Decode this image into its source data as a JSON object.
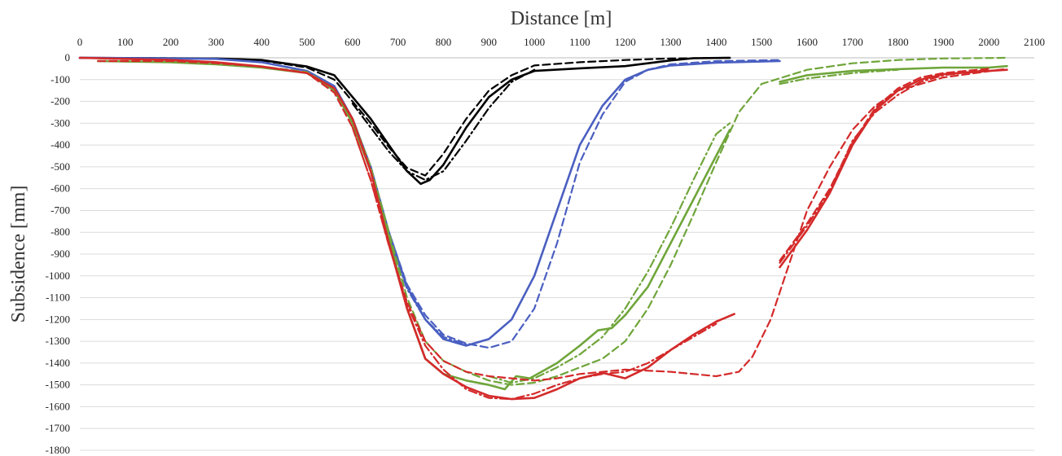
{
  "chart_data": {
    "type": "line",
    "title": "",
    "xlabel": "Distance [m]",
    "ylabel": "Subsidence [mm]",
    "x_axis_position": "top",
    "xlim": [
      0,
      2100
    ],
    "ylim": [
      -1800,
      0
    ],
    "x_ticks": [
      0,
      100,
      200,
      300,
      400,
      500,
      600,
      700,
      800,
      900,
      1000,
      1100,
      1200,
      1300,
      1400,
      1500,
      1600,
      1700,
      1800,
      1900,
      2000,
      2100
    ],
    "y_ticks": [
      0,
      -100,
      -200,
      -300,
      -400,
      -500,
      -600,
      -700,
      -800,
      -900,
      -1000,
      -1100,
      -1200,
      -1300,
      -1400,
      -1500,
      -1600,
      -1700,
      -1800
    ],
    "grid": "horizontal",
    "legend": "none",
    "series": [
      {
        "color": "#000000",
        "style": "solid",
        "points": [
          [
            0,
            0
          ],
          [
            300,
            -3
          ],
          [
            400,
            -10
          ],
          [
            500,
            -40
          ],
          [
            560,
            -80
          ],
          [
            600,
            -180
          ],
          [
            640,
            -280
          ],
          [
            680,
            -400
          ],
          [
            720,
            -520
          ],
          [
            750,
            -578
          ],
          [
            770,
            -560
          ],
          [
            800,
            -490
          ],
          [
            850,
            -320
          ],
          [
            900,
            -180
          ],
          [
            950,
            -100
          ],
          [
            1000,
            -60
          ],
          [
            1100,
            -48
          ],
          [
            1200,
            -38
          ],
          [
            1300,
            -12
          ],
          [
            1350,
            -2
          ],
          [
            1430,
            0
          ]
        ]
      },
      {
        "color": "#000000",
        "style": "dashed",
        "points": [
          [
            0,
            0
          ],
          [
            300,
            -3
          ],
          [
            400,
            -12
          ],
          [
            500,
            -45
          ],
          [
            560,
            -100
          ],
          [
            600,
            -200
          ],
          [
            640,
            -300
          ],
          [
            680,
            -410
          ],
          [
            720,
            -505
          ],
          [
            760,
            -540
          ],
          [
            800,
            -440
          ],
          [
            850,
            -280
          ],
          [
            900,
            -150
          ],
          [
            950,
            -80
          ],
          [
            1000,
            -35
          ],
          [
            1100,
            -20
          ],
          [
            1200,
            -10
          ],
          [
            1300,
            -3
          ],
          [
            1430,
            0
          ]
        ]
      },
      {
        "color": "#000000",
        "style": "dashdot",
        "points": [
          [
            600,
            -210
          ],
          [
            640,
            -320
          ],
          [
            680,
            -430
          ],
          [
            720,
            -520
          ],
          [
            760,
            -560
          ],
          [
            800,
            -520
          ],
          [
            850,
            -380
          ],
          [
            900,
            -230
          ],
          [
            950,
            -110
          ],
          [
            1000,
            -55
          ]
        ]
      },
      {
        "color": "#4a5fc1",
        "style": "solid",
        "points": [
          [
            0,
            0
          ],
          [
            300,
            -5
          ],
          [
            400,
            -20
          ],
          [
            500,
            -60
          ],
          [
            560,
            -130
          ],
          [
            600,
            -280
          ],
          [
            640,
            -500
          ],
          [
            680,
            -800
          ],
          [
            720,
            -1050
          ],
          [
            760,
            -1200
          ],
          [
            800,
            -1290
          ],
          [
            850,
            -1320
          ],
          [
            900,
            -1290
          ],
          [
            950,
            -1200
          ],
          [
            1000,
            -1000
          ],
          [
            1050,
            -700
          ],
          [
            1100,
            -400
          ],
          [
            1150,
            -220
          ],
          [
            1200,
            -100
          ],
          [
            1250,
            -55
          ],
          [
            1300,
            -35
          ],
          [
            1400,
            -22
          ],
          [
            1540,
            -15
          ]
        ]
      },
      {
        "color": "#4a5fc1",
        "style": "dashed",
        "points": [
          [
            600,
            -290
          ],
          [
            640,
            -510
          ],
          [
            680,
            -800
          ],
          [
            720,
            -1040
          ],
          [
            760,
            -1180
          ],
          [
            800,
            -1270
          ],
          [
            850,
            -1310
          ],
          [
            900,
            -1330
          ],
          [
            950,
            -1300
          ],
          [
            1000,
            -1150
          ],
          [
            1050,
            -850
          ],
          [
            1100,
            -480
          ],
          [
            1150,
            -260
          ],
          [
            1200,
            -110
          ],
          [
            1250,
            -55
          ],
          [
            1300,
            -30
          ],
          [
            1400,
            -15
          ],
          [
            1540,
            -10
          ]
        ]
      },
      {
        "color": "#4a5fc1",
        "style": "dashdot",
        "points": [
          [
            640,
            -520
          ],
          [
            680,
            -820
          ],
          [
            720,
            -1060
          ],
          [
            760,
            -1200
          ],
          [
            800,
            -1280
          ],
          [
            850,
            -1315
          ]
        ]
      },
      {
        "color": "#6fa53a",
        "style": "solid",
        "points": [
          [
            40,
            -15
          ],
          [
            200,
            -20
          ],
          [
            300,
            -30
          ],
          [
            400,
            -45
          ],
          [
            500,
            -70
          ],
          [
            560,
            -150
          ],
          [
            600,
            -300
          ],
          [
            640,
            -520
          ],
          [
            680,
            -820
          ],
          [
            720,
            -1150
          ],
          [
            760,
            -1380
          ],
          [
            800,
            -1450
          ],
          [
            850,
            -1480
          ],
          [
            900,
            -1500
          ],
          [
            935,
            -1520
          ],
          [
            960,
            -1460
          ],
          [
            990,
            -1470
          ],
          [
            1050,
            -1400
          ],
          [
            1100,
            -1320
          ],
          [
            1140,
            -1250
          ],
          [
            1170,
            -1240
          ],
          [
            1200,
            -1180
          ],
          [
            1250,
            -1050
          ],
          [
            1300,
            -850
          ],
          [
            1350,
            -650
          ],
          [
            1400,
            -450
          ],
          [
            1430,
            -330
          ]
        ]
      },
      {
        "color": "#6fa53a",
        "style": "solid",
        "points": [
          [
            1540,
            -110
          ],
          [
            1600,
            -80
          ],
          [
            1700,
            -60
          ],
          [
            1800,
            -52
          ],
          [
            1900,
            -45
          ],
          [
            2000,
            -45
          ],
          [
            2040,
            -38
          ]
        ]
      },
      {
        "color": "#6fa53a",
        "style": "dashed",
        "points": [
          [
            40,
            -15
          ],
          [
            200,
            -15
          ],
          [
            300,
            -25
          ],
          [
            400,
            -40
          ],
          [
            500,
            -65
          ],
          [
            560,
            -140
          ],
          [
            600,
            -280
          ],
          [
            640,
            -500
          ],
          [
            680,
            -800
          ],
          [
            720,
            -1100
          ],
          [
            760,
            -1300
          ],
          [
            800,
            -1390
          ],
          [
            850,
            -1440
          ],
          [
            900,
            -1480
          ],
          [
            950,
            -1500
          ],
          [
            1000,
            -1490
          ],
          [
            1050,
            -1460
          ],
          [
            1100,
            -1420
          ],
          [
            1150,
            -1380
          ],
          [
            1200,
            -1300
          ],
          [
            1250,
            -1150
          ],
          [
            1300,
            -950
          ],
          [
            1350,
            -720
          ],
          [
            1400,
            -480
          ],
          [
            1450,
            -250
          ],
          [
            1500,
            -120
          ],
          [
            1600,
            -55
          ],
          [
            1700,
            -25
          ],
          [
            1800,
            -10
          ],
          [
            1900,
            -3
          ],
          [
            2040,
            0
          ]
        ]
      },
      {
        "color": "#6fa53a",
        "style": "dashdot",
        "points": [
          [
            900,
            -1460
          ],
          [
            950,
            -1490
          ],
          [
            1000,
            -1470
          ],
          [
            1050,
            -1420
          ],
          [
            1100,
            -1360
          ],
          [
            1150,
            -1280
          ],
          [
            1200,
            -1150
          ],
          [
            1250,
            -980
          ],
          [
            1300,
            -780
          ],
          [
            1350,
            -560
          ],
          [
            1400,
            -350
          ],
          [
            1430,
            -300
          ]
        ]
      },
      {
        "color": "#6fa53a",
        "style": "dashdot",
        "points": [
          [
            1540,
            -120
          ],
          [
            1600,
            -95
          ],
          [
            1700,
            -70
          ],
          [
            1800,
            -55
          ]
        ]
      },
      {
        "color": "#d42a2a",
        "style": "solid",
        "points": [
          [
            0,
            0
          ],
          [
            200,
            -10
          ],
          [
            300,
            -20
          ],
          [
            400,
            -40
          ],
          [
            500,
            -70
          ],
          [
            560,
            -140
          ],
          [
            600,
            -280
          ],
          [
            640,
            -520
          ],
          [
            680,
            -850
          ],
          [
            720,
            -1150
          ],
          [
            760,
            -1380
          ],
          [
            800,
            -1450
          ],
          [
            850,
            -1510
          ],
          [
            900,
            -1550
          ],
          [
            950,
            -1565
          ],
          [
            1000,
            -1560
          ],
          [
            1050,
            -1520
          ],
          [
            1100,
            -1470
          ],
          [
            1150,
            -1445
          ],
          [
            1200,
            -1470
          ],
          [
            1250,
            -1420
          ],
          [
            1300,
            -1340
          ],
          [
            1350,
            -1270
          ],
          [
            1400,
            -1210
          ],
          [
            1440,
            -1175
          ]
        ]
      },
      {
        "color": "#d42a2a",
        "style": "solid",
        "points": [
          [
            1540,
            -960
          ],
          [
            1600,
            -790
          ],
          [
            1650,
            -620
          ],
          [
            1700,
            -400
          ],
          [
            1750,
            -240
          ],
          [
            1800,
            -150
          ],
          [
            1850,
            -100
          ],
          [
            1900,
            -75
          ],
          [
            2000,
            -60
          ],
          [
            2040,
            -55
          ]
        ]
      },
      {
        "color": "#d42a2a",
        "style": "dashed",
        "points": [
          [
            40,
            -15
          ],
          [
            200,
            -15
          ],
          [
            300,
            -25
          ],
          [
            400,
            -40
          ],
          [
            500,
            -70
          ],
          [
            560,
            -160
          ],
          [
            600,
            -320
          ],
          [
            640,
            -560
          ],
          [
            680,
            -860
          ],
          [
            720,
            -1120
          ],
          [
            760,
            -1300
          ],
          [
            800,
            -1390
          ],
          [
            850,
            -1440
          ],
          [
            900,
            -1460
          ],
          [
            950,
            -1470
          ],
          [
            1000,
            -1480
          ],
          [
            1050,
            -1470
          ],
          [
            1100,
            -1450
          ],
          [
            1150,
            -1440
          ],
          [
            1200,
            -1430
          ],
          [
            1300,
            -1440
          ],
          [
            1400,
            -1460
          ],
          [
            1450,
            -1440
          ],
          [
            1480,
            -1370
          ],
          [
            1520,
            -1200
          ],
          [
            1560,
            -950
          ],
          [
            1600,
            -700
          ],
          [
            1650,
            -500
          ],
          [
            1700,
            -330
          ],
          [
            1750,
            -220
          ],
          [
            1800,
            -150
          ],
          [
            1900,
            -90
          ],
          [
            2040,
            -50
          ]
        ]
      },
      {
        "color": "#d42a2a",
        "style": "dashed",
        "points": [
          [
            1540,
            -930
          ],
          [
            1600,
            -760
          ],
          [
            1650,
            -600
          ],
          [
            1700,
            -390
          ],
          [
            1750,
            -230
          ],
          [
            1800,
            -140
          ],
          [
            1850,
            -90
          ],
          [
            1900,
            -70
          ],
          [
            2000,
            -50
          ]
        ]
      },
      {
        "color": "#d42a2a",
        "style": "dashdot",
        "points": [
          [
            600,
            -320
          ],
          [
            640,
            -560
          ],
          [
            680,
            -860
          ],
          [
            720,
            -1130
          ],
          [
            760,
            -1320
          ],
          [
            800,
            -1430
          ],
          [
            850,
            -1520
          ],
          [
            900,
            -1560
          ],
          [
            950,
            -1565
          ],
          [
            1000,
            -1540
          ],
          [
            1050,
            -1500
          ],
          [
            1100,
            -1470
          ],
          [
            1150,
            -1450
          ],
          [
            1200,
            -1440
          ],
          [
            1250,
            -1400
          ],
          [
            1300,
            -1340
          ],
          [
            1350,
            -1280
          ],
          [
            1400,
            -1220
          ]
        ]
      },
      {
        "color": "#d42a2a",
        "style": "dashdot",
        "points": [
          [
            1540,
            -940
          ],
          [
            1600,
            -770
          ],
          [
            1650,
            -610
          ],
          [
            1700,
            -380
          ],
          [
            1750,
            -250
          ],
          [
            1800,
            -170
          ],
          [
            1850,
            -110
          ],
          [
            1900,
            -80
          ],
          [
            2000,
            -55
          ]
        ]
      }
    ]
  }
}
